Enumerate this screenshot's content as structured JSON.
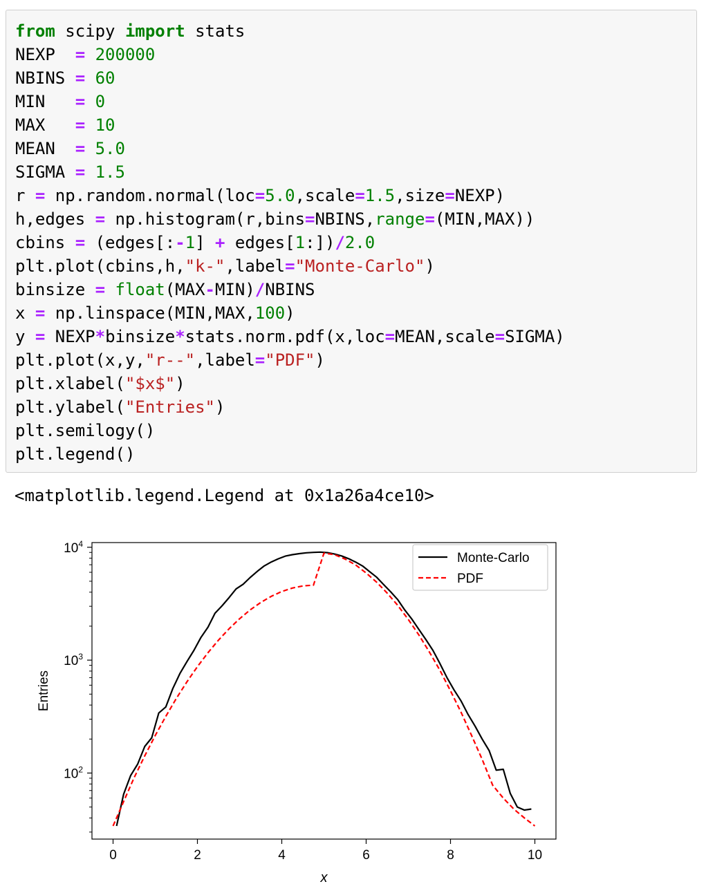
{
  "code_cell": {
    "lines": [
      [
        {
          "t": "from",
          "c": "kw"
        },
        {
          "t": " scipy "
        },
        {
          "t": "import",
          "c": "kw"
        },
        {
          "t": " stats"
        }
      ],
      [
        {
          "t": "NEXP  "
        },
        {
          "t": "=",
          "c": "op"
        },
        {
          "t": " "
        },
        {
          "t": "200000",
          "c": "num"
        }
      ],
      [
        {
          "t": "NBINS "
        },
        {
          "t": "=",
          "c": "op"
        },
        {
          "t": " "
        },
        {
          "t": "60",
          "c": "num"
        }
      ],
      [
        {
          "t": "MIN   "
        },
        {
          "t": "=",
          "c": "op"
        },
        {
          "t": " "
        },
        {
          "t": "0",
          "c": "num"
        }
      ],
      [
        {
          "t": "MAX   "
        },
        {
          "t": "=",
          "c": "op"
        },
        {
          "t": " "
        },
        {
          "t": "10",
          "c": "num"
        }
      ],
      [
        {
          "t": "MEAN  "
        },
        {
          "t": "=",
          "c": "op"
        },
        {
          "t": " "
        },
        {
          "t": "5.0",
          "c": "num"
        }
      ],
      [
        {
          "t": "SIGMA "
        },
        {
          "t": "=",
          "c": "op"
        },
        {
          "t": " "
        },
        {
          "t": "1.5",
          "c": "num"
        }
      ],
      [
        {
          "t": "r "
        },
        {
          "t": "=",
          "c": "op"
        },
        {
          "t": " np.random.normal(loc"
        },
        {
          "t": "=",
          "c": "op"
        },
        {
          "t": "5.0",
          "c": "num"
        },
        {
          "t": ",scale"
        },
        {
          "t": "=",
          "c": "op"
        },
        {
          "t": "1.5",
          "c": "num"
        },
        {
          "t": ",size"
        },
        {
          "t": "=",
          "c": "op"
        },
        {
          "t": "NEXP)"
        }
      ],
      [
        {
          "t": "h,edges "
        },
        {
          "t": "=",
          "c": "op"
        },
        {
          "t": " np.histogram(r,bins"
        },
        {
          "t": "=",
          "c": "op"
        },
        {
          "t": "NBINS,"
        },
        {
          "t": "range",
          "c": "bi"
        },
        {
          "t": "=",
          "c": "op"
        },
        {
          "t": "(MIN,MAX))"
        }
      ],
      [
        {
          "t": "cbins "
        },
        {
          "t": "=",
          "c": "op"
        },
        {
          "t": " (edges[:"
        },
        {
          "t": "-",
          "c": "op"
        },
        {
          "t": "1",
          "c": "num"
        },
        {
          "t": "] "
        },
        {
          "t": "+",
          "c": "op"
        },
        {
          "t": " edges["
        },
        {
          "t": "1",
          "c": "num"
        },
        {
          "t": ":])"
        },
        {
          "t": "/",
          "c": "op"
        },
        {
          "t": "2.0",
          "c": "num"
        }
      ],
      [
        {
          "t": "plt.plot(cbins,h,"
        },
        {
          "t": "\"k-\"",
          "c": "str"
        },
        {
          "t": ",label"
        },
        {
          "t": "=",
          "c": "op"
        },
        {
          "t": "\"Monte-Carlo\"",
          "c": "str"
        },
        {
          "t": ")"
        }
      ],
      [
        {
          "t": "binsize "
        },
        {
          "t": "=",
          "c": "op"
        },
        {
          "t": " "
        },
        {
          "t": "float",
          "c": "bi"
        },
        {
          "t": "(MAX"
        },
        {
          "t": "-",
          "c": "op"
        },
        {
          "t": "MIN)"
        },
        {
          "t": "/",
          "c": "op"
        },
        {
          "t": "NBINS"
        }
      ],
      [
        {
          "t": "x "
        },
        {
          "t": "=",
          "c": "op"
        },
        {
          "t": " np.linspace(MIN,MAX,"
        },
        {
          "t": "100",
          "c": "num"
        },
        {
          "t": ")"
        }
      ],
      [
        {
          "t": "y "
        },
        {
          "t": "=",
          "c": "op"
        },
        {
          "t": " NEXP"
        },
        {
          "t": "*",
          "c": "op"
        },
        {
          "t": "binsize"
        },
        {
          "t": "*",
          "c": "op"
        },
        {
          "t": "stats.norm.pdf(x,loc"
        },
        {
          "t": "=",
          "c": "op"
        },
        {
          "t": "MEAN,scale"
        },
        {
          "t": "=",
          "c": "op"
        },
        {
          "t": "SIGMA)"
        }
      ],
      [
        {
          "t": "plt.plot(x,y,"
        },
        {
          "t": "\"r--\"",
          "c": "str"
        },
        {
          "t": ",label"
        },
        {
          "t": "=",
          "c": "op"
        },
        {
          "t": "\"PDF\"",
          "c": "str"
        },
        {
          "t": ")"
        }
      ],
      [
        {
          "t": "plt.xlabel("
        },
        {
          "t": "\"$x$\"",
          "c": "str"
        },
        {
          "t": ")"
        }
      ],
      [
        {
          "t": "plt.ylabel("
        },
        {
          "t": "\"Entries\"",
          "c": "str"
        },
        {
          "t": ")"
        }
      ],
      [
        {
          "t": "plt.semilogy()"
        }
      ],
      [
        {
          "t": "plt.legend()"
        }
      ]
    ]
  },
  "output_text": "<matplotlib.legend.Legend at 0x1a26a4ce10>",
  "chart_data": {
    "type": "line",
    "title": "",
    "xlabel": "x",
    "ylabel": "Entries",
    "xlim": [
      -0.5,
      10.5
    ],
    "ylim": [
      26,
      11000
    ],
    "yscale": "log",
    "grid": false,
    "legend_position": "top-right",
    "x_ticks": [
      0,
      2,
      4,
      6,
      8,
      10
    ],
    "x_tick_labels": [
      "0",
      "2",
      "4",
      "6",
      "8",
      "10"
    ],
    "y_ticks": [
      100,
      1000,
      10000
    ],
    "y_tick_labels": [
      {
        "base": "10",
        "exp": "2"
      },
      {
        "base": "10",
        "exp": "3"
      },
      {
        "base": "10",
        "exp": "4"
      }
    ],
    "series": [
      {
        "name": "Monte-Carlo",
        "color": "#000000",
        "dash": "solid",
        "x": [
          0.0833,
          0.25,
          0.4167,
          0.5833,
          0.75,
          0.9167,
          1.0833,
          1.25,
          1.4167,
          1.5833,
          1.75,
          1.9167,
          2.0833,
          2.25,
          2.4167,
          2.5833,
          2.75,
          2.9167,
          3.0833,
          3.25,
          3.4167,
          3.5833,
          3.75,
          3.9167,
          4.0833,
          4.25,
          4.4167,
          4.5833,
          4.75,
          4.9167,
          5.0833,
          5.25,
          5.4167,
          5.5833,
          5.75,
          5.9167,
          6.0833,
          6.25,
          6.4167,
          6.5833,
          6.75,
          6.9167,
          7.0833,
          7.25,
          7.4167,
          7.5833,
          7.75,
          7.9167,
          8.0833,
          8.25,
          8.4167,
          8.5833,
          8.75,
          8.9167,
          9.0833,
          9.25,
          9.4167,
          9.5833,
          9.75,
          9.9167
        ],
        "y": [
          34,
          65,
          95,
          120,
          172,
          205,
          340,
          385,
          560,
          760,
          970,
          1220,
          1590,
          1960,
          2600,
          3030,
          3580,
          4270,
          4700,
          5400,
          6100,
          6830,
          7400,
          7900,
          8350,
          8600,
          8780,
          8930,
          9000,
          9050,
          8950,
          8700,
          8380,
          7920,
          7390,
          6820,
          6080,
          5420,
          4660,
          4020,
          3430,
          2780,
          2310,
          1870,
          1520,
          1220,
          930,
          700,
          545,
          435,
          330,
          260,
          200,
          158,
          106,
          108,
          66,
          50,
          47,
          48
        ]
      },
      {
        "name": "PDF",
        "color": "#ff0000",
        "dash": "dashed",
        "x": [
          0.0,
          0.25,
          0.5,
          0.75,
          1.0,
          1.25,
          1.5,
          1.75,
          2.0,
          2.25,
          2.5,
          2.75,
          3.0,
          3.25,
          3.5,
          3.75,
          4.0,
          4.25,
          4.5,
          4.75,
          5.0,
          5.25,
          5.5,
          5.75,
          6.0,
          6.25,
          6.5,
          6.75,
          7.0,
          7.25,
          7.5,
          7.75,
          8.0,
          8.25,
          8.5,
          8.75,
          9.0,
          9.25,
          9.5,
          9.75,
          10.0
        ],
        "y": [
          34,
          56,
          91,
          142,
          215,
          318,
          458,
          642,
          876,
          1164,
          1505,
          1896,
          2328,
          2785,
          3242,
          3674,
          4053,
          4351,
          4546,
          4614,
          8870,
          8600,
          7860,
          6970,
          5920,
          4900,
          3920,
          3050,
          2290,
          1670,
          1180,
          810,
          535,
          345,
          215,
          132,
          78,
          60,
          48,
          40,
          34
        ]
      }
    ]
  }
}
